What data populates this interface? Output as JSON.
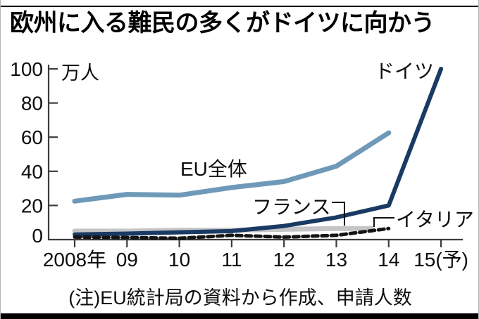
{
  "title": "欧州に入る難民の多くがドイツに向かう",
  "note": "(注)EU統計局の資料から作成、申請人数",
  "chart_data": {
    "type": "line",
    "ylabel": "万人",
    "x": [
      "2008年",
      "09",
      "10",
      "11",
      "12",
      "13",
      "14",
      "15(予)"
    ],
    "yticks": [
      0,
      20,
      40,
      60,
      80,
      100
    ],
    "ylim": [
      0,
      100
    ],
    "grid": false,
    "legend_position": "inline-labels",
    "series": [
      {
        "name": "EU全体",
        "values": [
          22.5,
          26.5,
          26,
          30.5,
          34,
          43,
          62.5,
          null
        ],
        "color": "#6f99b8",
        "style": "solid",
        "width": 7
      },
      {
        "name": "ドイツ",
        "values": [
          3,
          3.5,
          4.3,
          5,
          8,
          13,
          20,
          100
        ],
        "color": "#1a3a63",
        "style": "solid",
        "width": 6
      },
      {
        "name": "フランス",
        "values": [
          5,
          5,
          5.5,
          5.5,
          6,
          6.5,
          6.5,
          null
        ],
        "color": "#c5c5c7",
        "style": "solid",
        "width": 7
      },
      {
        "name": "イタリア",
        "values": [
          1.5,
          1.2,
          0.8,
          2.5,
          1.5,
          2.5,
          6.5,
          null
        ],
        "color": "#141414",
        "style": "dashed",
        "width": 5
      }
    ],
    "axis_color": "#3c3c3c"
  }
}
